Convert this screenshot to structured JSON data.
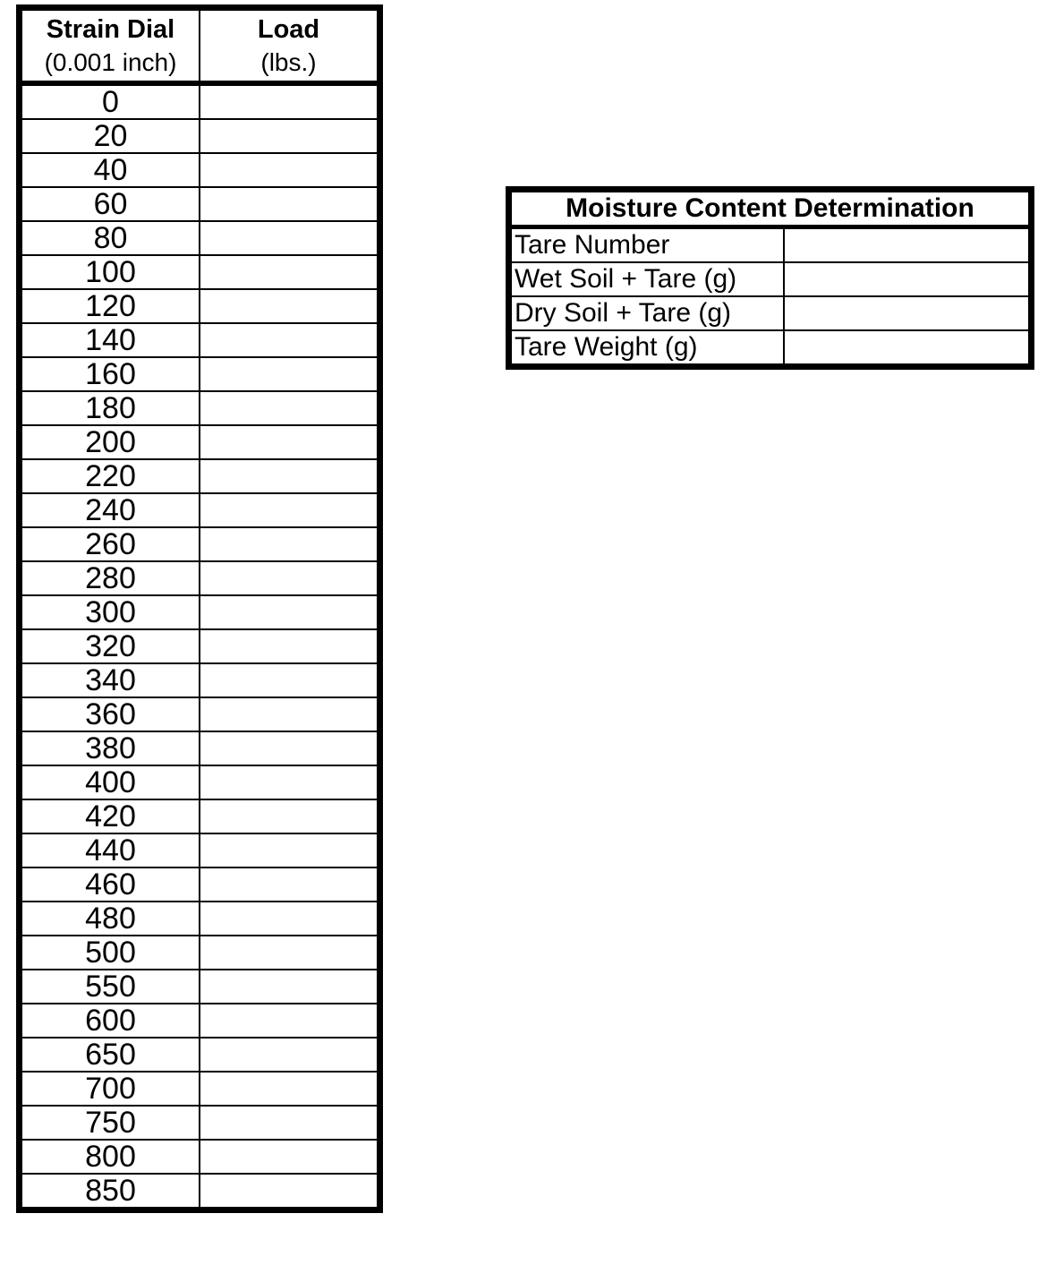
{
  "colors": {
    "ink": "#000000",
    "paper": "#ffffff"
  },
  "strain_table": {
    "header": {
      "col1_line1": "Strain Dial",
      "col1_line2": "(0.001 inch)",
      "col2_line1": "Load",
      "col2_line2": "(lbs.)"
    },
    "rows": [
      "0",
      "20",
      "40",
      "60",
      "80",
      "100",
      "120",
      "140",
      "160",
      "180",
      "200",
      "220",
      "240",
      "260",
      "280",
      "300",
      "320",
      "340",
      "360",
      "380",
      "400",
      "420",
      "440",
      "460",
      "480",
      "500",
      "550",
      "600",
      "650",
      "700",
      "750",
      "800",
      "850"
    ]
  },
  "moisture_table": {
    "title": "Moisture Content Determination",
    "rows": [
      {
        "label": "Tare Number",
        "value": ""
      },
      {
        "label": "Wet Soil + Tare (g)",
        "value": ""
      },
      {
        "label": "Dry Soil + Tare (g)",
        "value": ""
      },
      {
        "label": "Tare Weight (g)",
        "value": ""
      }
    ]
  }
}
